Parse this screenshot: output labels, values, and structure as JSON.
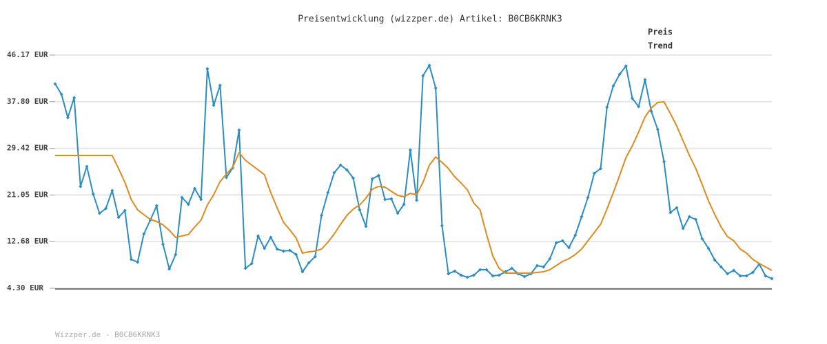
{
  "chart_data": {
    "type": "line",
    "title": "Preisentwicklung (wizzper.de) Artikel: B0CB6KRNK3",
    "footer": "Wizzper.de - B0CB6KRNK3",
    "ylim": [
      4.3,
      46.17
    ],
    "yticks": [
      {
        "value": 4.3,
        "label": "4.30 EUR"
      },
      {
        "value": 12.68,
        "label": "12.68 EUR"
      },
      {
        "value": 21.05,
        "label": "21.05 EUR"
      },
      {
        "value": 29.42,
        "label": "29.42 EUR"
      },
      {
        "value": 37.8,
        "label": "37.80 EUR"
      },
      {
        "value": 46.17,
        "label": "46.17 EUR"
      }
    ],
    "grid": true,
    "series": [
      {
        "name": "Preis",
        "color": "#2a8cc4",
        "markers": true,
        "values": [
          40.98,
          39.13,
          34.93,
          38.51,
          22.58,
          26.16,
          21.22,
          17.76,
          18.63,
          21.84,
          17.02,
          18.26,
          9.49,
          8.99,
          14.06,
          16.53,
          19.12,
          12.21,
          7.76,
          10.35,
          20.6,
          19.37,
          22.21,
          20.23,
          43.7,
          37.15,
          40.74,
          24.19,
          25.92,
          32.71,
          7.88,
          8.75,
          13.69,
          11.47,
          13.44,
          11.34,
          10.97,
          11.09,
          10.35,
          7.27,
          8.87,
          9.98,
          17.39,
          21.47,
          25.05,
          26.41,
          25.55,
          24.06,
          18.38,
          15.42,
          23.94,
          24.56,
          20.23,
          20.36,
          17.76,
          19.37,
          29.13,
          20.11,
          42.46,
          44.32,
          40.24,
          15.54,
          6.9,
          7.39,
          6.65,
          6.28,
          6.65,
          7.64,
          7.64,
          6.53,
          6.65,
          7.27,
          7.88,
          6.9,
          6.4,
          6.9,
          8.38,
          8.13,
          9.61,
          12.45,
          12.82,
          11.59,
          13.81,
          17.15,
          20.6,
          24.93,
          25.79,
          36.78,
          40.61,
          42.71,
          44.19,
          38.39,
          36.91,
          41.72,
          36.04,
          32.83,
          27.03,
          17.89,
          18.75,
          15.05,
          17.15,
          16.65,
          13.2,
          11.47,
          9.37,
          8.13,
          6.9,
          7.51,
          6.53,
          6.53,
          7.14,
          8.63,
          6.53,
          6.03
        ]
      },
      {
        "name": "Trend",
        "color": "#e08a1e",
        "markers": false,
        "values": [
          28.14,
          28.14,
          28.14,
          28.14,
          28.14,
          28.14,
          28.14,
          28.14,
          28.14,
          28.14,
          25.79,
          23.32,
          20.23,
          18.38,
          17.52,
          16.65,
          16.28,
          15.67,
          14.68,
          13.44,
          13.69,
          13.94,
          15.29,
          16.53,
          19.25,
          21.1,
          23.45,
          24.8,
          26.04,
          28.63,
          27.27,
          26.41,
          25.55,
          24.68,
          21.47,
          18.75,
          16.16,
          14.8,
          13.32,
          10.6,
          10.85,
          10.97,
          11.34,
          12.58,
          14.06,
          15.79,
          17.39,
          18.51,
          19.25,
          20.48,
          22.09,
          22.58,
          22.46,
          21.72,
          20.98,
          20.73,
          21.35,
          21.1,
          23.32,
          26.41,
          27.89,
          26.9,
          25.79,
          24.31,
          23.2,
          21.96,
          19.62,
          18.38,
          14.06,
          10.11,
          7.88,
          7.02,
          7.02,
          7.02,
          7.02,
          7.02,
          7.14,
          7.27,
          7.64,
          8.38,
          9.12,
          9.61,
          10.35,
          11.34,
          12.82,
          14.31,
          15.79,
          18.51,
          21.47,
          24.56,
          27.77,
          29.87,
          32.34,
          35.05,
          36.66,
          37.65,
          37.77,
          35.67,
          33.45,
          30.73,
          28.14,
          25.79,
          22.95,
          19.99,
          17.52,
          15.29,
          13.57,
          12.82,
          11.34,
          10.6,
          9.49,
          8.75,
          8.13,
          7.51
        ]
      }
    ]
  }
}
